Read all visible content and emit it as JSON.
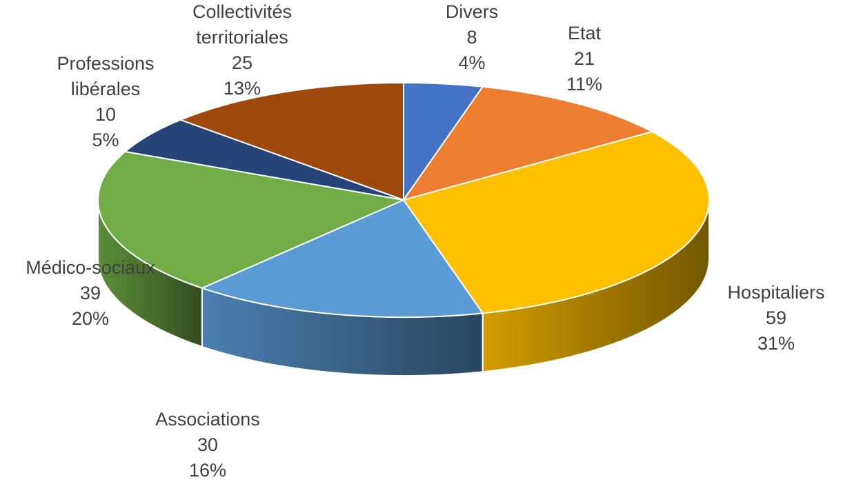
{
  "chart_data": {
    "type": "pie",
    "style": "3d",
    "title": "",
    "slices": [
      {
        "label": "Divers",
        "label_lines": [
          "Divers"
        ],
        "value": 8,
        "percent": "4%",
        "color": "#4472C4"
      },
      {
        "label": "Etat",
        "label_lines": [
          "Etat"
        ],
        "value": 21,
        "percent": "11%",
        "color": "#ED7D31"
      },
      {
        "label": "Hospitaliers",
        "label_lines": [
          "Hospitaliers"
        ],
        "value": 59,
        "percent": "31%",
        "color": "#FFC000"
      },
      {
        "label": "Associations",
        "label_lines": [
          "Associations"
        ],
        "value": 30,
        "percent": "16%",
        "color": "#5B9BD5"
      },
      {
        "label": "Médico-sociaux",
        "label_lines": [
          "Médico-sociaux"
        ],
        "value": 39,
        "percent": "20%",
        "color": "#70AD47"
      },
      {
        "label": "Professions libérales",
        "label_lines": [
          "Professions",
          "libérales"
        ],
        "value": 10,
        "percent": "5%",
        "color": "#264478"
      },
      {
        "label": "Collectivités territoriales",
        "label_lines": [
          "Collectivités",
          "territoriales"
        ],
        "value": 25,
        "percent": "13%",
        "color": "#9E480E"
      }
    ]
  }
}
